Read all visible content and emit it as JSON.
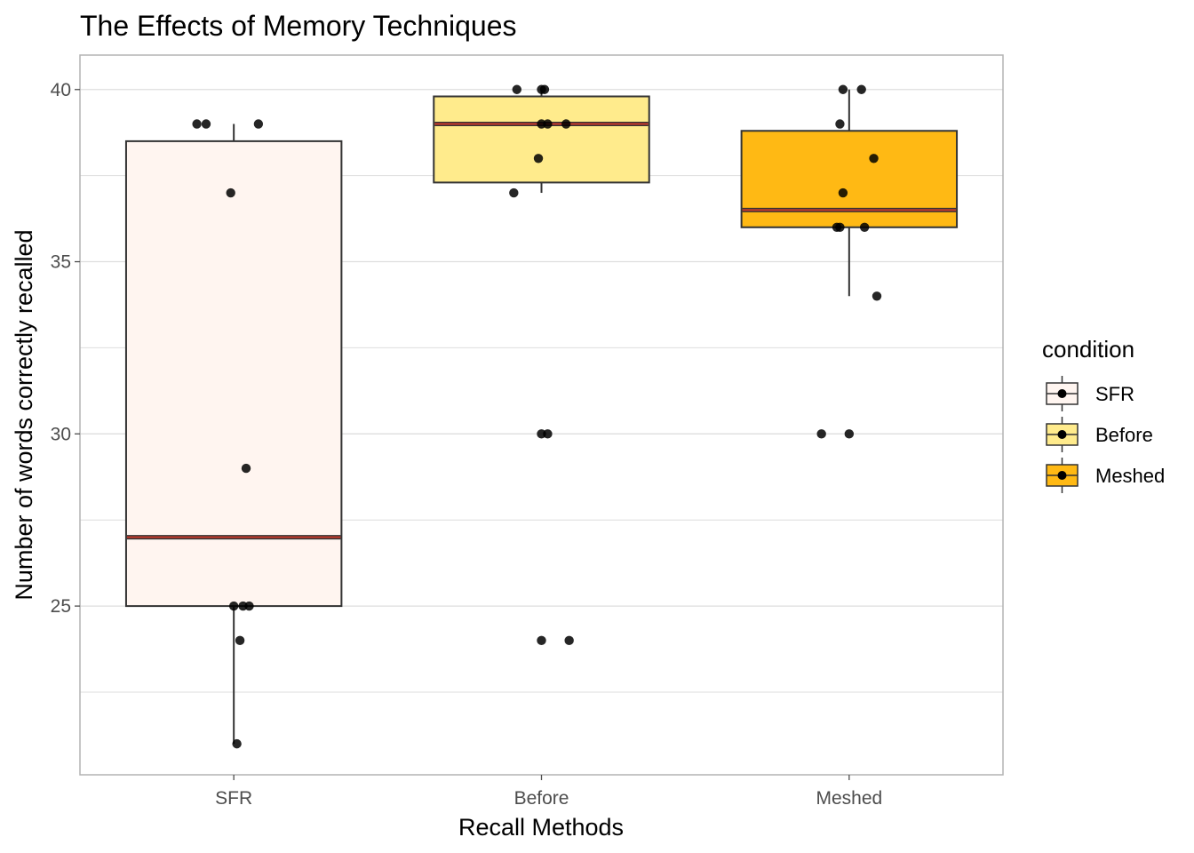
{
  "chart_data": {
    "type": "box",
    "title": "The Effects of Memory Techniques",
    "xlabel": "Recall Methods",
    "ylabel": "Number of words correctly recalled",
    "categories": [
      "SFR",
      "Before",
      "Meshed"
    ],
    "ylim": [
      20.1,
      41
    ],
    "y_ticks": [
      25,
      30,
      35,
      40
    ],
    "grid": true,
    "legend": {
      "title": "condition",
      "placement": "right",
      "entries": [
        "SFR",
        "Before",
        "Meshed"
      ]
    },
    "colors": {
      "SFR": "#fff5f0",
      "Before": "#ffeb8c",
      "Meshed": "#ffb914",
      "median": "#c0392b",
      "points": "#000000",
      "grid": "#dedede",
      "panel_border": "#b3b3b3"
    },
    "boxes": [
      {
        "name": "SFR",
        "lower": 21,
        "q1": 25,
        "median": 27,
        "q3": 38.5,
        "upper": 39
      },
      {
        "name": "Before",
        "lower": 37,
        "q1": 37.3,
        "median": 39,
        "q3": 39.8,
        "upper": 40
      },
      {
        "name": "Meshed",
        "lower": 34,
        "q1": 36,
        "median": 36.5,
        "q3": 38.8,
        "upper": 40
      }
    ],
    "points": [
      {
        "cat": "SFR",
        "y": 39,
        "jit": -0.12
      },
      {
        "cat": "SFR",
        "y": 39,
        "jit": -0.09
      },
      {
        "cat": "SFR",
        "y": 39,
        "jit": 0.08
      },
      {
        "cat": "SFR",
        "y": 37,
        "jit": -0.01
      },
      {
        "cat": "SFR",
        "y": 29,
        "jit": 0.04
      },
      {
        "cat": "SFR",
        "y": 25,
        "jit": 0.0
      },
      {
        "cat": "SFR",
        "y": 25,
        "jit": 0.03
      },
      {
        "cat": "SFR",
        "y": 25,
        "jit": 0.05
      },
      {
        "cat": "SFR",
        "y": 24,
        "jit": 0.02
      },
      {
        "cat": "SFR",
        "y": 21,
        "jit": 0.01
      },
      {
        "cat": "Before",
        "y": 40,
        "jit": -0.08
      },
      {
        "cat": "Before",
        "y": 40,
        "jit": 0.0
      },
      {
        "cat": "Before",
        "y": 40,
        "jit": 0.01
      },
      {
        "cat": "Before",
        "y": 39,
        "jit": 0.0
      },
      {
        "cat": "Before",
        "y": 39,
        "jit": 0.02
      },
      {
        "cat": "Before",
        "y": 39,
        "jit": 0.08
      },
      {
        "cat": "Before",
        "y": 38,
        "jit": -0.01
      },
      {
        "cat": "Before",
        "y": 37,
        "jit": -0.09
      },
      {
        "cat": "Before",
        "y": 30,
        "jit": 0.0
      },
      {
        "cat": "Before",
        "y": 30,
        "jit": 0.02
      },
      {
        "cat": "Before",
        "y": 24,
        "jit": 0.0
      },
      {
        "cat": "Before",
        "y": 24,
        "jit": 0.09
      },
      {
        "cat": "Meshed",
        "y": 40,
        "jit": -0.02
      },
      {
        "cat": "Meshed",
        "y": 40,
        "jit": 0.04
      },
      {
        "cat": "Meshed",
        "y": 39,
        "jit": -0.03
      },
      {
        "cat": "Meshed",
        "y": 38,
        "jit": 0.08
      },
      {
        "cat": "Meshed",
        "y": 37,
        "jit": -0.02
      },
      {
        "cat": "Meshed",
        "y": 36,
        "jit": -0.04
      },
      {
        "cat": "Meshed",
        "y": 36,
        "jit": -0.03
      },
      {
        "cat": "Meshed",
        "y": 36,
        "jit": 0.05
      },
      {
        "cat": "Meshed",
        "y": 34,
        "jit": 0.09
      },
      {
        "cat": "Meshed",
        "y": 30,
        "jit": -0.09
      },
      {
        "cat": "Meshed",
        "y": 30,
        "jit": 0.0
      }
    ]
  }
}
